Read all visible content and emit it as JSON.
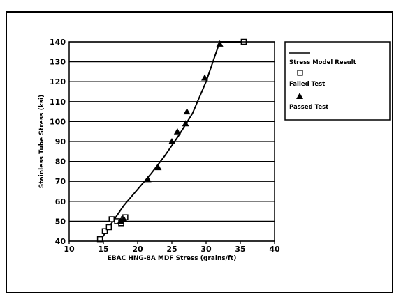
{
  "chart_data": {
    "type": "line",
    "title": "",
    "xlabel": "EBAC HNG-8A MDF Stress (grains/ft)",
    "ylabel": "Stainless Tube Stress (ksi)",
    "xlim": [
      10,
      40
    ],
    "ylim": [
      40,
      140
    ],
    "x_ticks": [
      "10",
      "15",
      "20",
      "25",
      "30",
      "35",
      "40"
    ],
    "y_ticks": [
      "40",
      "50",
      "60",
      "70",
      "80",
      "90",
      "100",
      "110",
      "120",
      "130",
      "140"
    ],
    "grid": "horizontal",
    "legend_position": "right",
    "series": [
      {
        "name": "Stress Model Result",
        "style": "line",
        "x": [
          14.5,
          16.0,
          18.0,
          20.0,
          22.0,
          24.0,
          26.0,
          28.0,
          30.0,
          32.0,
          35.5
        ],
        "y": [
          40,
          48,
          58,
          66,
          74,
          83,
          93,
          104,
          120,
          140,
          140
        ]
      },
      {
        "name": "Failed Test",
        "style": "square",
        "x": [
          14.5,
          15.2,
          15.8,
          16.2,
          17.0,
          17.6,
          18.0,
          18.2,
          35.5
        ],
        "y": [
          41,
          45,
          47,
          51,
          50,
          49,
          51,
          52,
          140
        ]
      },
      {
        "name": "Passed Test",
        "style": "triangle",
        "x": [
          17.5,
          18.0,
          21.5,
          23.0,
          25.0,
          25.8,
          27.0,
          27.2,
          29.8,
          32.0
        ],
        "y": [
          50,
          51,
          71,
          77,
          90,
          95,
          99,
          105,
          122,
          139
        ]
      }
    ]
  },
  "legend": {
    "items": [
      {
        "label": "Stress Model Result",
        "symbol": "line"
      },
      {
        "label": "Failed Test",
        "symbol": "square"
      },
      {
        "label": "Passed Test",
        "symbol": "triangle"
      }
    ]
  },
  "colors": {
    "ink": "#000000",
    "background": "#ffffff"
  }
}
